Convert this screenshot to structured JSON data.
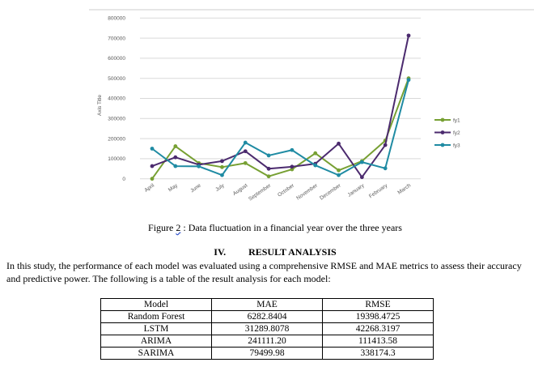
{
  "chart_data": {
    "type": "line",
    "title": "",
    "xlabel": "",
    "ylabel": "Axis Title",
    "ylim": [
      0,
      800000
    ],
    "yticks": [
      "0",
      "100000",
      "200000",
      "300000",
      "400000",
      "500000",
      "600000",
      "700000",
      "800000"
    ],
    "categories": [
      "April",
      "May",
      "June",
      "July",
      "August",
      "September",
      "October",
      "November",
      "December",
      "January",
      "February",
      "March"
    ],
    "legend_position": "right",
    "grid": true,
    "series": [
      {
        "name": "fy1",
        "color": "#77a033",
        "values": [
          0,
          162000,
          78000,
          58000,
          78000,
          12000,
          47000,
          127000,
          42000,
          88000,
          190000,
          500000
        ]
      },
      {
        "name": "fy2",
        "color": "#4b2a6e",
        "values": [
          63000,
          107000,
          70000,
          88000,
          137000,
          50000,
          60000,
          75000,
          175000,
          8000,
          168000,
          713000
        ]
      },
      {
        "name": "fy3",
        "color": "#1f8ba3",
        "values": [
          150000,
          63000,
          62000,
          18000,
          180000,
          116000,
          143000,
          67000,
          18000,
          83000,
          52000,
          492000
        ]
      }
    ]
  },
  "caption": {
    "prefix": "Figure ",
    "number": "2",
    "rest": " : Data fluctuation in a financial year over the three years"
  },
  "section": {
    "number": "IV.",
    "title": "RESULT ANALYSIS"
  },
  "paragraph": "In this study, the performance of each model was evaluated using a comprehensive RMSE and MAE metrics to assess their accuracy and predictive power. The following is a table of the result analysis for each model:",
  "table": {
    "headers": [
      "Model",
      "MAE",
      "RMSE"
    ],
    "rows": [
      [
        "Random Forest",
        "6282.8404",
        "19398.4725"
      ],
      [
        "LSTM",
        "31289.8078",
        "42268.3197"
      ],
      [
        "ARIMA",
        "241111.20",
        "111413.58"
      ],
      [
        "SARIMA",
        "79499.98",
        "338174.3"
      ]
    ]
  }
}
